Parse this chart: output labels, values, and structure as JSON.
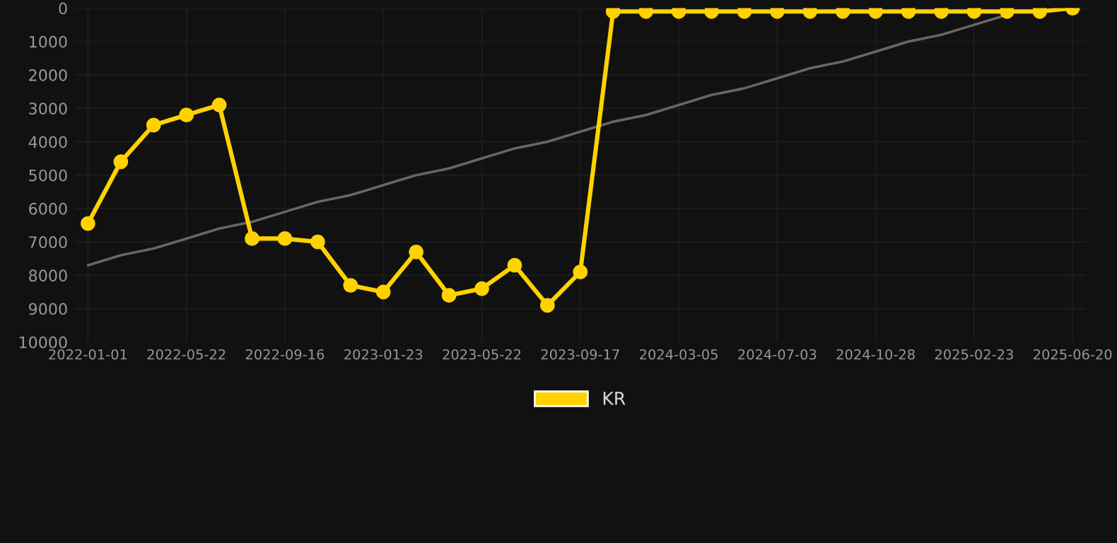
{
  "chart_data": {
    "type": "line",
    "categories": [
      "2022-01-01",
      null,
      null,
      "2022-05-22",
      null,
      null,
      "2022-09-16",
      null,
      null,
      "2023-01-23",
      null,
      null,
      "2023-05-22",
      null,
      null,
      "2023-09-17",
      null,
      null,
      "2024-03-05",
      null,
      null,
      "2024-07-03",
      null,
      null,
      "2024-10-28",
      null,
      null,
      "2025-02-23",
      null,
      null,
      "2025-06-20"
    ],
    "series": [
      {
        "name": "KR",
        "color": "#ffd200",
        "marker": "circle",
        "values": [
          6450,
          4600,
          3500,
          3200,
          2900,
          6900,
          6900,
          7000,
          8300,
          8500,
          7300,
          8600,
          8400,
          7700,
          8900,
          7900,
          100,
          100,
          100,
          100,
          100,
          100,
          100,
          100,
          100,
          100,
          100,
          100,
          100,
          100,
          0
        ]
      },
      {
        "type": "line",
        "color": "#666666",
        "marker": "none",
        "values": [
          7700,
          7400,
          7200,
          6900,
          6600,
          6400,
          6100,
          5800,
          5600,
          5300,
          5000,
          4800,
          4500,
          4200,
          4000,
          3700,
          3400,
          3200,
          2900,
          2600,
          2400,
          2100,
          1800,
          1600,
          1300,
          1000,
          800,
          500,
          200,
          null,
          null
        ]
      }
    ],
    "ylim": [
      10000,
      0
    ],
    "yticks": [
      0,
      1000,
      2000,
      3000,
      4000,
      5000,
      6000,
      7000,
      8000,
      9000,
      10000
    ],
    "grid": true,
    "legend": "bottom",
    "line_style": "solid"
  }
}
